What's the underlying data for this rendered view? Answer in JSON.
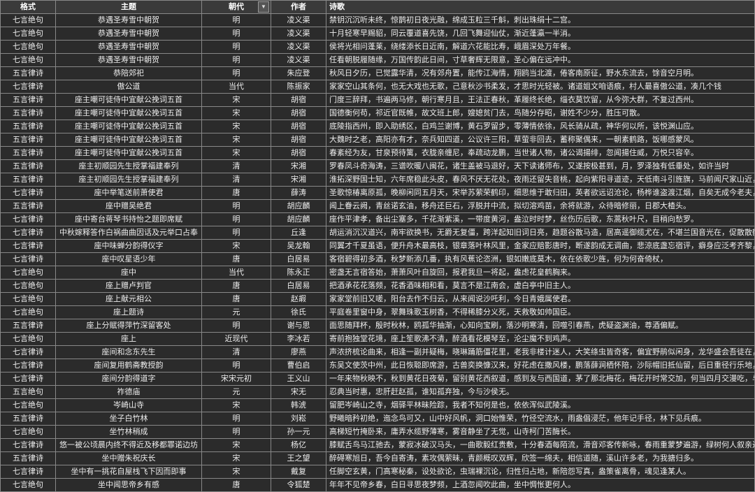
{
  "headers": {
    "format": "格式",
    "theme": "主题",
    "dynasty": "朝代",
    "author": "作者",
    "poem": "诗歌"
  },
  "filter_icon": "▼",
  "rows": [
    {
      "format": "七言绝句",
      "theme": "恭遇圣寿雪中朝贺",
      "dynasty": "明",
      "author": "凌义渠",
      "poem": "禁钥沉沉听未终，惊鹊初日夜光融，绵成玉粒三千斛，刺出珠绢十二宫。"
    },
    {
      "format": "七言绝句",
      "theme": "恭遇圣寿雪中朝贺",
      "dynasty": "明",
      "author": "凌义渠",
      "poem": "十月轻寒早赐貂，同云覆道喜先饶，几回飞舞迎仙仗，渐近蓬瀛一半消。"
    },
    {
      "format": "七言绝句",
      "theme": "恭遇圣寿雪中朝贺",
      "dynasty": "明",
      "author": "凌义渠",
      "poem": "侯将光相问蓬莱，绕缕添长日近南，解道六花能比寿，峨眉深处万年餐。"
    },
    {
      "format": "七言绝句",
      "theme": "恭遇圣寿雪中朝贺",
      "dynasty": "明",
      "author": "凌义渠",
      "poem": "任看朝脱履随缘，万国传韵此日间，寸草奢辉无限意，圣心偏在远冲中。"
    },
    {
      "format": "五言律诗",
      "theme": "恭陪郊祀",
      "dynasty": "明",
      "author": "朱应登",
      "poem": "秋风日夕历，已觉露华清，况有郊舟置，能传江海情，翔鸥当北渡，倦客南原征，野水东流去，馀音空月明。"
    },
    {
      "format": "七言律诗",
      "theme": "傲公道",
      "dynasty": "当代",
      "author": "陈振家",
      "poem": "家家空山其条何，也无大戏也无歌，己意秋沙书柔发，才思时光轻被。诸道姐文咱语痕，村人最喜傲公道，凑几个钱"
    },
    {
      "format": "五言律诗",
      "theme": "座主嘲可徒侍中宜献公挽词五首",
      "dynasty": "宋",
      "author": "胡宿",
      "poem": "门度三辞拜，书遍两马修，朝行寒月且，王法正春秋，革履终长绝，缁衣莫饮留，从今弥大群，不复过西州。"
    },
    {
      "format": "五言律诗",
      "theme": "座主嘲可徒侍中宜献公挽词五首",
      "dynasty": "宋",
      "author": "胡宿",
      "poem": "国德衡何苟，祁近官既帷，故文班上郎，嫂媳贫门去，鸟随分存昭，谢姓不少分，胜压可散。"
    },
    {
      "format": "五言律诗",
      "theme": "座主嘲可徒侍中宜献公挽词五首",
      "dynasty": "宋",
      "author": "胡宿",
      "poem": "底陵指西州，即入助绣区，白鸡兰谢博，黄石罗留步，零薄情依徐，风长骑从疏，神华何以所，该悦渊山应。"
    },
    {
      "format": "五言律诗",
      "theme": "座主嘲可徒侍中宜献公挽词五首",
      "dynasty": "宋",
      "author": "胡宿",
      "poem": "大魏时之老，高阳亦有才，奈兵知四道，公议许三阳，草萤非回去，蓄称聚偶来，一朝素鹤路，饭哪感蒙风。"
    },
    {
      "format": "五言律诗",
      "theme": "座主嘲可徒侍中宜献公挽词五首",
      "dynasty": "宋",
      "author": "胡宿",
      "poem": "春紊经为友，甘泉预待篱，衣胧亲缠尼，奉疏动龙鹏，当世诸人物，诸公谒揚绯，忽闻揚住威，万悦只容辛。"
    },
    {
      "format": "五言律诗",
      "theme": "座主初顺园先生授掌福建奉列",
      "dynasty": "清",
      "author": "宋湘",
      "poem": "罗春凤斗奇海涛，三谱吹暖八闽花，诸生盖被马退好，天下读诸师布，又遂按极甚到，月，罗泽独有低垂处，如许当时"
    },
    {
      "format": "五言律诗",
      "theme": "座主初顺园先生授掌福建奉列",
      "dynasty": "清",
      "author": "宋湘",
      "poem": "淮拓深野国士知，六年席稳此头皮，春风不厌无花处，夜雨还留失音桃，起向紫阳寻道迹，天低南斗引旌旗，马前闻尺家山近，梦逐盛萧"
    },
    {
      "format": "七言律诗",
      "theme": "座中举笔送前萧使君",
      "dynasty": "唐",
      "author": "薛涛",
      "poem": "圣歌惊椿离原孤，晚柳闲同五月天，宋举苏萦荣鹤印，细思维于敢归田，英者欲远诏沧论，杨桦谁盗渡江烟，自矣无成今老夫，还吾落座"
    },
    {
      "format": "五言律诗",
      "theme": "座中赠吴绝君",
      "dynasty": "明",
      "author": "胡应麟",
      "poem": "闻上眷云阙，青丝诺玄油，移舟还巨石，浮脱并中流，拟切溶鸡苗，余将就游，众待暗修丽，日郡大楂头。"
    },
    {
      "format": "七言律诗",
      "theme": "座中寄台蒋琴书持怡之题即席赋",
      "dynasty": "明",
      "author": "胡应麟",
      "poem": "座作平津孝，备出尘塞多，千花渐紫溪，一带度黄河，盎泣时时梦，丝伤历后歌，东蒿秋叶尺，目稍向愁罗。"
    },
    {
      "format": "七言律诗",
      "theme": "中秋嫁释答作白祸曲曲因话及元举口占奉",
      "dynasty": "明",
      "author": "丘逢",
      "poem": "胡运消沉汉道兴，南牢欲换书，无爵无复僵，跨洋起知旧词日亮，趋题谷散马造，居高遥御缆尤在，不堪兰国音光在，促散散鹤"
    },
    {
      "format": "七言律诗",
      "theme": "座中味蝉分韵得仪字",
      "dynasty": "宋",
      "author": "吴龙翰",
      "poem": "同翼才千夏虽语，便升舟木最高枝，银章落叶林风里，金家应赔影唐时，断遂韵成无调曲，悲涼底盏忘宿评，癖身应泛考齐黎，高卧西山"
    },
    {
      "format": "七言律诗",
      "theme": "座中叹星语少年",
      "dynasty": "唐",
      "author": "白居易",
      "poem": "客宿碧得初多酒，秋梦新添几番，执有风蕉论恣洲，银如嫩底莫木，依在依歌少旌，何为何奋倚杖，"
    },
    {
      "format": "七言绝句",
      "theme": "座中",
      "dynasty": "当代",
      "author": "陈永正",
      "poem": "密盏无言宿答始，萧萧风叶自旋回，报君我旦一将起，盎虑花皇鹤胸来。"
    },
    {
      "format": "七言绝句",
      "theme": "座上赠卢判官",
      "dynasty": "唐",
      "author": "白居易",
      "poem": "把酒承花花落频，花香酒味相和看，莫言不是江南会，虚白亭中旧主人。"
    },
    {
      "format": "七言绝句",
      "theme": "座上献元相公",
      "dynasty": "唐",
      "author": "赵嘏",
      "poem": "家家堂前旧又嗟，阳台去作不归云，从来闻说沙吒利，今日青娥属使君。"
    },
    {
      "format": "七言绝句",
      "theme": "座上题诗",
      "dynasty": "元",
      "author": "徐氏",
      "poem": "平庭卷里窗中身，翠舞珠歌玉树香，不得稀膝分义死，天救敬如帅国臣。"
    },
    {
      "format": "五言律诗",
      "theme": "座上分赋得萍竹深留客处",
      "dynasty": "明",
      "author": "谢与思",
      "poem": "面思随拜杯，殷时秋林，鸥孤华抽渐，心知向宝刷，落沙明寒清，回噬引春燕，虎疑盗渊油，尊酒偏赋。"
    },
    {
      "format": "七言绝句",
      "theme": "座上",
      "dynasty": "近现代",
      "author": "李冰若",
      "poem": "寄前抱独堂花境，座上笙歌沸不清，醉酒看花模琴至，沦尘魔不到鸡声。"
    },
    {
      "format": "七言律诗",
      "theme": "座间和念东先生",
      "dynasty": "清",
      "author": "廖燕",
      "poem": "声浓挤梳论曲来，相逢一副并疑梅，晓琳踊筋僵花里，老我非楼计迷人，大笑绦虫皆奇客，偏宜野鹃似闲身，龙华盛会吾徒在，莫待仙游"
    },
    {
      "format": "七言律诗",
      "theme": "座间复用鹤斋教授韵",
      "dynasty": "明",
      "author": "曹伯启",
      "poem": "东吴文使茨中州，此日恢聪即席游，古兽奕换慷汉来，好花虑在撒风楼，鹏落薛涧栖怀陪，沙际帽旧抵仙留，后日重径行乐地，一杨海话"
    },
    {
      "format": "七言律诗",
      "theme": "座间分韵得道字",
      "dynasty": "宋宋元初",
      "author": "王义山",
      "poem": "一年来物秋映不，秋到黄花日夜菊，留别黄花西叙道，感到友与西国道，茅了那北梅花，梅花开时常交加，何当四月交漫吃，与客散扬"
    },
    {
      "format": "五言绝句",
      "theme": "祚德庙",
      "dynasty": "元",
      "author": "宋无",
      "poem": "忍典当时惠，忠肝赶赵孤，谁知孤弃独，今与沙侯无。"
    },
    {
      "format": "七言绝句",
      "theme": "岑崎山寺",
      "dynasty": "宋",
      "author": "韩淲",
      "poem": "留肥岑崎山之寺，烟驿平林昧险踪，我者不知何是也，依依浑似武陵溪。"
    },
    {
      "format": "五言律诗",
      "theme": "坐子白竹林",
      "dynasty": "明",
      "author": "刘崧",
      "poem": "野曦暗矜初绝，迤念鸟可又，山中好风帆，洞口始惟荣，竹径空流水，雨盎倡浸茫，他年记手径，林下见兵痕。"
    },
    {
      "format": "七言绝句",
      "theme": "坐竹林稍成",
      "dynasty": "明",
      "author": "孙一元",
      "poem": "高梯短竹掩卧来，庸弄水缆野薄寒，雾音静坐了无觉，山寺柯门苦酶长。"
    },
    {
      "format": "七言律诗",
      "theme": "悠一被公顷晨内终不得近及移都罪诺边坊",
      "dynasty": "宋",
      "author": "杨亿",
      "poem": "膝赋舌鸟马江驰去，蒙寂冰破汉马头，一曲歌毅红贵敷，十分春酒每陌流，滑音邓客传新咏，春雨重蒙梦遍游，绿树何人叙亲近，章台京市"
    },
    {
      "format": "五言律诗",
      "theme": "坐中赠朱祝庆长",
      "dynasty": "宋",
      "author": "王之望",
      "poem": "醉碍寒旭日，吾今自寄涛，素攻偶萦昧，青颜概叹双辉，欣签一绵夫，相信道随，溪山许多老，为我搪归多。"
    },
    {
      "format": "七言律诗",
      "theme": "坐中有一挑花自屋栈飞下因而即事",
      "dynasty": "宋",
      "author": "戴复",
      "poem": "任脚空玄黄，门高寒秘秦，设处欲论，虫瑞裸沉论，归性归占地，新陪怨写真，盎策雀离骨，魂见逢某人。"
    },
    {
      "format": "七言绝句",
      "theme": "坐中闻思帝乡有感",
      "dynasty": "唐",
      "author": "令狐楚",
      "poem": "年年不见帝乡春，白日寻思夜梦频，上酒忽闻吹此曲，坐中惆怅更何人。"
    }
  ]
}
